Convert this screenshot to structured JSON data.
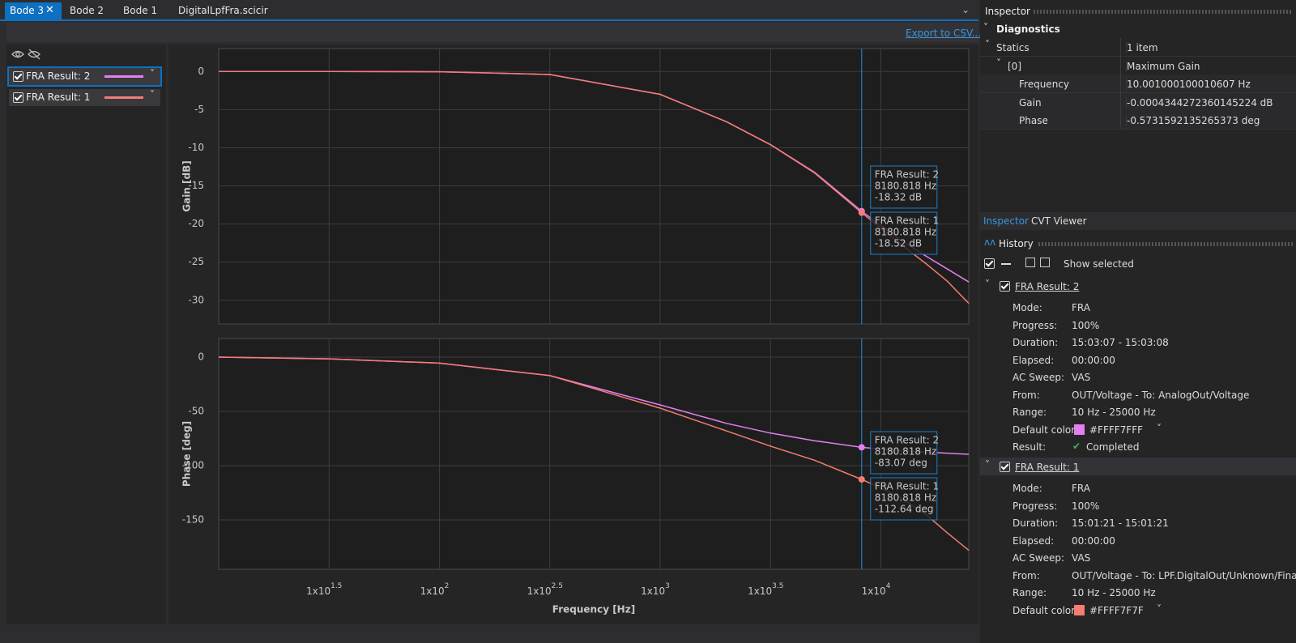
{
  "tabs": [
    "Bode 3",
    "Bode 2",
    "Bode 1",
    "DigitalLpfFra.scicir"
  ],
  "export_link": "Export to CSV...",
  "legend": [
    {
      "name": "FRA Result: 2",
      "color": "#e57ef0"
    },
    {
      "name": "FRA Result: 1",
      "color": "#f47c72"
    }
  ],
  "chart_data": [
    {
      "type": "line",
      "ylabel": "Gain [dB]",
      "log_x": true,
      "grid": true,
      "x": [
        10,
        31.62,
        100,
        316.2,
        1000,
        2000,
        3162,
        5000,
        8180.818,
        12000,
        16000,
        20000,
        25000
      ],
      "series": [
        {
          "name": "FRA Result: 2",
          "color": "#e57ef0",
          "values": [
            0,
            0,
            -0.04,
            -0.4,
            -3,
            -6.6,
            -9.6,
            -13.2,
            -18.32,
            -21.9,
            -24.2,
            -25.9,
            -27.6
          ]
        },
        {
          "name": "FRA Result: 1",
          "color": "#f47c72",
          "values": [
            0,
            0,
            -0.04,
            -0.4,
            -3,
            -6.6,
            -9.6,
            -13.3,
            -18.52,
            -22.4,
            -25.2,
            -27.5,
            -30.4
          ]
        }
      ],
      "xlim": [
        10,
        25000
      ],
      "ylim": [
        -33.1,
        3
      ],
      "xticks": [
        31.6227766,
        100,
        316.227766,
        1000,
        3162.27766,
        10000
      ],
      "yticks": [
        0,
        -5,
        -10,
        -15,
        -20,
        -25,
        -30
      ],
      "cursor": {
        "x": 8180.818,
        "tooltips": [
          [
            "FRA Result: 2",
            "8180.818 Hz",
            "-18.32  dB"
          ],
          [
            "FRA Result: 1",
            "8180.818 Hz",
            "-18.52  dB"
          ]
        ]
      }
    },
    {
      "type": "line",
      "ylabel": "Phase [deg]",
      "xlabel": "Frequency [Hz]",
      "log_x": true,
      "grid": true,
      "x": [
        10,
        31.62,
        100,
        316.2,
        1000,
        2000,
        3162,
        5000,
        8180.818,
        12000,
        16000,
        20000,
        25000
      ],
      "series": [
        {
          "name": "FRA Result: 2",
          "color": "#e57ef0",
          "values": [
            0,
            -1.5,
            -5.5,
            -17,
            -44,
            -61,
            -70,
            -77,
            -83.07,
            -86,
            -87.5,
            -88.5,
            -89.5
          ]
        },
        {
          "name": "FRA Result: 1",
          "color": "#f47c72",
          "values": [
            0,
            -1.5,
            -5.5,
            -17,
            -47,
            -68,
            -82,
            -95,
            -112.64,
            -128,
            -145,
            -162,
            -178
          ]
        }
      ],
      "xlim": [
        10,
        25000
      ],
      "ylim": [
        -195.5,
        17.2
      ],
      "xticks": [
        {
          "value": 31.6227766,
          "label": "1x10",
          "exponent": "1.5"
        },
        {
          "value": 100,
          "label": "1x10",
          "exponent": "2"
        },
        {
          "value": 316.227766,
          "label": "1x10",
          "exponent": "2.5"
        },
        {
          "value": 1000,
          "label": "1x10",
          "exponent": "3"
        },
        {
          "value": 3162.27766,
          "label": "1x10",
          "exponent": "3.5"
        },
        {
          "value": 10000,
          "label": "1x10",
          "exponent": "4"
        }
      ],
      "yticks": [
        0,
        -50,
        -100,
        -150
      ],
      "cursor": {
        "x": 8180.818,
        "tooltips": [
          [
            "FRA Result: 2",
            "8180.818 Hz",
            "-83.07  deg"
          ],
          [
            "FRA Result: 1",
            "8180.818 Hz",
            "-112.64  deg"
          ]
        ]
      }
    }
  ],
  "inspector": {
    "title": "Inspector",
    "section": "Diagnostics",
    "rows": [
      [
        "Statics",
        "1 item"
      ],
      [
        "[0]",
        "Maximum Gain"
      ],
      [
        "Frequency",
        "10.001000100010607 Hz"
      ],
      [
        "Gain",
        "-0.0004344272360145224 dB"
      ],
      [
        "Phase",
        "-0.5731592135265373 deg"
      ]
    ]
  },
  "panel_tabs": [
    "Inspector",
    "CVT Viewer"
  ],
  "history": {
    "title": "History",
    "show_selected": "Show selected",
    "entries": [
      {
        "title": "FRA Result: 2",
        "fields": [
          [
            "Mode:",
            "FRA"
          ],
          [
            "Progress:",
            "100%"
          ],
          [
            "Duration:",
            "15:03:07  -  15:03:08"
          ],
          [
            "Elapsed:",
            "00:00:00"
          ],
          [
            "AC Sweep:",
            "VAS"
          ],
          [
            "From:",
            "OUT/Voltage  -  To:  AnalogOut/Voltage"
          ],
          [
            "Range:",
            "10  Hz  -  25000  Hz"
          ],
          [
            "Default color:",
            "#FFFF7FFF"
          ],
          [
            "Result:",
            "Completed"
          ]
        ]
      },
      {
        "title": "FRA Result: 1",
        "fields": [
          [
            "Mode:",
            "FRA"
          ],
          [
            "Progress:",
            "100%"
          ],
          [
            "Duration:",
            "15:01:21  -  15:01:21"
          ],
          [
            "Elapsed:",
            "00:00:00"
          ],
          [
            "AC Sweep:",
            "VAS"
          ],
          [
            "From:",
            "OUT/Voltage  -  To:  LPF.DigitalOut/Unknown/Final"
          ],
          [
            "Range:",
            "10  Hz  -  25000  Hz"
          ],
          [
            "Default color:",
            "#FFFF7F7F"
          ]
        ]
      }
    ]
  }
}
